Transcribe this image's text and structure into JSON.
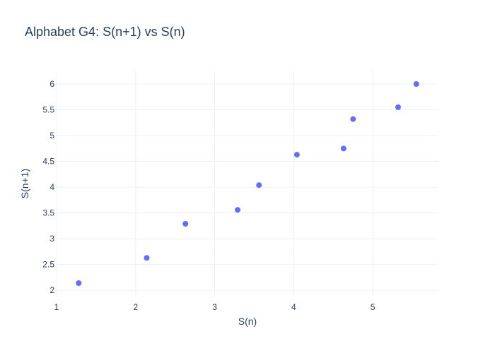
{
  "chart_data": {
    "type": "scatter",
    "title": "Alphabet G4: S(n+1) vs S(n)",
    "xlabel": "S(n)",
    "ylabel": "S(n+1)",
    "xlim": [
      1,
      5.83
    ],
    "ylim": [
      1.88,
      6.26
    ],
    "xticks": [
      1,
      2,
      3,
      4,
      5
    ],
    "yticks": [
      2,
      2.5,
      3,
      3.5,
      4,
      4.5,
      5,
      5.5,
      6
    ],
    "ytick_labels": [
      "2",
      "2.5",
      "3",
      "3.5",
      "4",
      "4.5",
      "5",
      "5.5",
      "6"
    ],
    "grid": true,
    "marker_color": "#636efa",
    "points": [
      {
        "x": 1.28,
        "y": 2.14
      },
      {
        "x": 2.14,
        "y": 2.63
      },
      {
        "x": 2.63,
        "y": 3.29
      },
      {
        "x": 3.29,
        "y": 3.56
      },
      {
        "x": 3.56,
        "y": 4.04
      },
      {
        "x": 4.04,
        "y": 4.63
      },
      {
        "x": 4.63,
        "y": 4.75
      },
      {
        "x": 4.75,
        "y": 5.32
      },
      {
        "x": 5.32,
        "y": 5.55
      },
      {
        "x": 5.55,
        "y": 6.0
      }
    ]
  }
}
